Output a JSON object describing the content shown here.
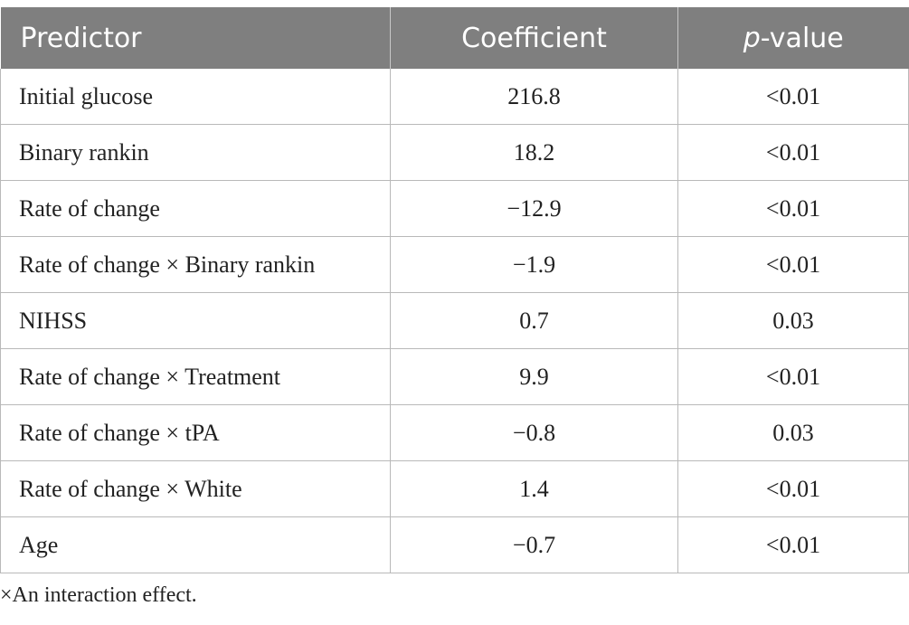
{
  "table": {
    "headers": {
      "predictor": "Predictor",
      "coefficient": "Coefficient",
      "pvalue_italic": "p",
      "pvalue_rest": "-value"
    },
    "rows": [
      {
        "predictor": "Initial glucose",
        "coefficient": "216.8",
        "pvalue": "<0.01"
      },
      {
        "predictor": "Binary rankin",
        "coefficient": "18.2",
        "pvalue": "<0.01"
      },
      {
        "predictor": "Rate of change",
        "coefficient": "−12.9",
        "pvalue": "<0.01"
      },
      {
        "predictor": "Rate of change × Binary rankin",
        "coefficient": "−1.9",
        "pvalue": "<0.01"
      },
      {
        "predictor": "NIHSS",
        "coefficient": "0.7",
        "pvalue": "0.03"
      },
      {
        "predictor": "Rate of change × Treatment",
        "coefficient": "9.9",
        "pvalue": "<0.01"
      },
      {
        "predictor": "Rate of change × tPA",
        "coefficient": "−0.8",
        "pvalue": "0.03"
      },
      {
        "predictor": "Rate of change × White",
        "coefficient": "1.4",
        "pvalue": "<0.01"
      },
      {
        "predictor": "Age",
        "coefficient": "−0.7",
        "pvalue": "<0.01"
      }
    ]
  },
  "footnote": "×An interaction effect.",
  "colors": {
    "header_bg": "#7f7f7f",
    "header_text": "#ffffff",
    "grid": "#b9b9b9"
  }
}
